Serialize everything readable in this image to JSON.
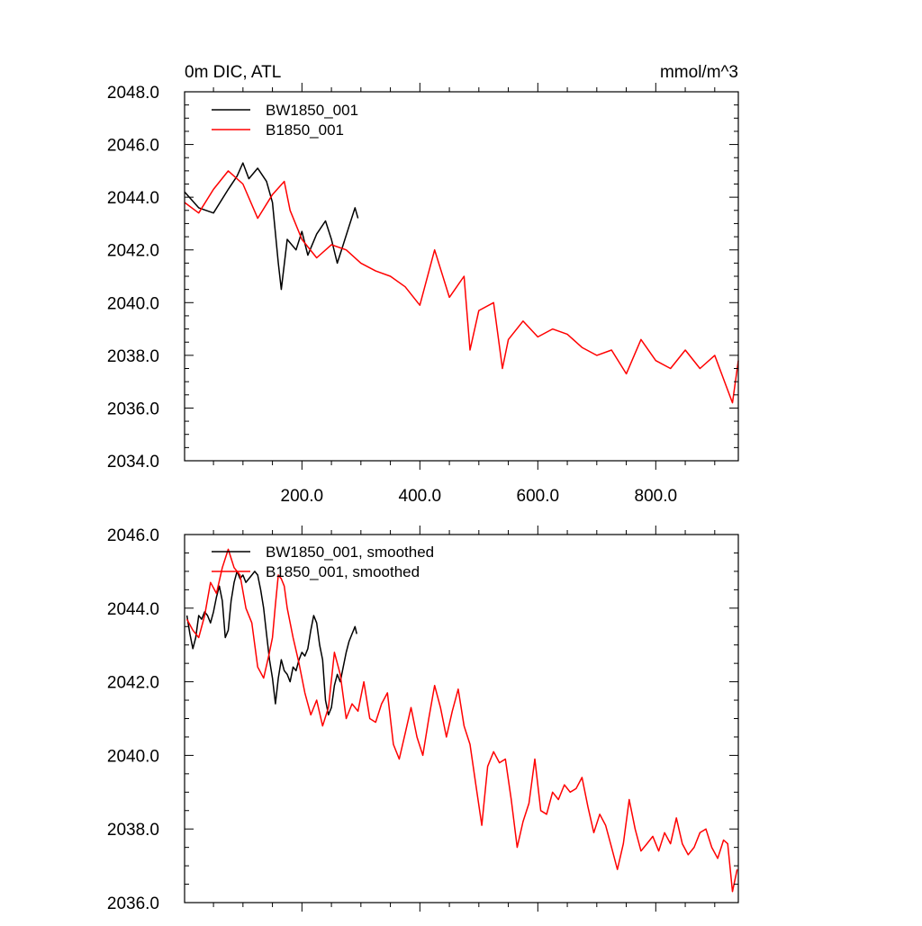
{
  "chart_data": [
    {
      "type": "line",
      "title": "0m DIC, ATL",
      "units": "mmol/m^3",
      "xlim": [
        1,
        940
      ],
      "ylim": [
        2034.0,
        2048.0
      ],
      "xticks": [
        200.0,
        400.0,
        600.0,
        800.0
      ],
      "xtick_labels": [
        "200.0",
        "400.0",
        "600.0",
        "800.0"
      ],
      "yticks": [
        2034.0,
        2036.0,
        2038.0,
        2040.0,
        2042.0,
        2044.0,
        2046.0,
        2048.0
      ],
      "ytick_labels": [
        "2034.0",
        "2036.0",
        "2038.0",
        "2040.0",
        "2042.0",
        "2044.0",
        "2046.0",
        "2048.0"
      ],
      "legend_position": "top-left",
      "series": [
        {
          "name": "BW1850_001",
          "color": "#000000",
          "x": [
            1,
            25,
            50,
            75,
            90,
            100,
            110,
            125,
            140,
            150,
            160,
            165,
            175,
            190,
            200,
            210,
            225,
            240,
            250,
            260,
            270,
            280,
            290,
            295
          ],
          "y": [
            2044.2,
            2043.6,
            2043.4,
            2044.3,
            2044.8,
            2045.3,
            2044.7,
            2045.1,
            2044.6,
            2043.8,
            2041.5,
            2040.5,
            2042.4,
            2042.0,
            2042.7,
            2041.8,
            2042.6,
            2043.1,
            2042.4,
            2041.5,
            2042.2,
            2042.9,
            2043.6,
            2043.2
          ]
        },
        {
          "name": "B1850_001",
          "color": "#ff0000",
          "x": [
            1,
            25,
            50,
            75,
            100,
            125,
            150,
            170,
            180,
            200,
            225,
            250,
            275,
            300,
            325,
            350,
            375,
            400,
            425,
            450,
            475,
            485,
            500,
            525,
            540,
            550,
            575,
            600,
            625,
            650,
            675,
            700,
            725,
            750,
            775,
            800,
            825,
            850,
            875,
            900,
            920,
            930,
            940
          ],
          "y": [
            2043.8,
            2043.4,
            2044.3,
            2045.0,
            2044.5,
            2043.2,
            2044.1,
            2044.6,
            2043.5,
            2042.4,
            2041.7,
            2042.2,
            2042.0,
            2041.5,
            2041.2,
            2041.0,
            2040.6,
            2039.9,
            2042.0,
            2040.2,
            2041.0,
            2038.2,
            2039.7,
            2040.0,
            2037.5,
            2038.6,
            2039.3,
            2038.7,
            2039.0,
            2038.8,
            2038.3,
            2038.0,
            2038.2,
            2037.3,
            2038.6,
            2037.8,
            2037.5,
            2038.2,
            2037.5,
            2038.0,
            2036.8,
            2036.2,
            2037.8
          ]
        }
      ]
    },
    {
      "type": "line",
      "xlim": [
        1,
        940
      ],
      "ylim": [
        2036.0,
        2046.0
      ],
      "yticks": [
        2036.0,
        2038.0,
        2040.0,
        2042.0,
        2044.0,
        2046.0
      ],
      "ytick_labels": [
        "2036.0",
        "2038.0",
        "2040.0",
        "2042.0",
        "2044.0",
        "2046.0"
      ],
      "legend_position": "top-left",
      "series": [
        {
          "name": "BW1850_001, smoothed",
          "color": "#000000",
          "x": [
            5,
            10,
            15,
            20,
            25,
            30,
            35,
            40,
            45,
            50,
            55,
            60,
            65,
            70,
            75,
            80,
            85,
            90,
            95,
            100,
            105,
            110,
            115,
            120,
            125,
            130,
            135,
            140,
            145,
            150,
            155,
            160,
            165,
            170,
            175,
            180,
            185,
            190,
            195,
            200,
            205,
            210,
            215,
            220,
            225,
            230,
            235,
            240,
            245,
            250,
            255,
            260,
            265,
            270,
            275,
            280,
            285,
            290,
            293
          ],
          "y": [
            2043.8,
            2043.3,
            2042.9,
            2043.2,
            2043.8,
            2043.7,
            2043.9,
            2043.8,
            2043.6,
            2043.9,
            2044.3,
            2044.6,
            2044.2,
            2043.2,
            2043.4,
            2044.2,
            2044.7,
            2045.0,
            2044.8,
            2044.9,
            2044.7,
            2044.8,
            2044.9,
            2045.0,
            2044.9,
            2044.5,
            2044.0,
            2043.3,
            2042.6,
            2042.1,
            2041.4,
            2042.1,
            2042.6,
            2042.3,
            2042.2,
            2042.0,
            2042.4,
            2042.3,
            2042.6,
            2042.8,
            2042.7,
            2042.9,
            2043.4,
            2043.8,
            2043.6,
            2043.0,
            2042.6,
            2041.5,
            2041.1,
            2041.3,
            2041.9,
            2042.2,
            2042.0,
            2042.4,
            2042.8,
            2043.1,
            2043.3,
            2043.5,
            2043.3
          ]
        },
        {
          "name": "B1850_001, smoothed",
          "color": "#ff0000",
          "x": [
            5,
            15,
            25,
            35,
            45,
            55,
            65,
            75,
            85,
            95,
            105,
            115,
            125,
            135,
            145,
            150,
            155,
            160,
            165,
            170,
            175,
            185,
            195,
            205,
            215,
            225,
            235,
            245,
            255,
            265,
            275,
            285,
            295,
            305,
            315,
            325,
            335,
            345,
            355,
            365,
            375,
            385,
            395,
            405,
            415,
            425,
            435,
            445,
            455,
            465,
            475,
            485,
            495,
            505,
            515,
            525,
            535,
            545,
            555,
            565,
            575,
            585,
            595,
            605,
            615,
            625,
            635,
            645,
            655,
            665,
            675,
            685,
            695,
            705,
            715,
            725,
            735,
            745,
            755,
            765,
            775,
            785,
            795,
            805,
            815,
            825,
            835,
            845,
            855,
            865,
            875,
            885,
            895,
            905,
            915,
            922,
            930,
            938
          ],
          "y": [
            2043.7,
            2043.4,
            2043.2,
            2043.8,
            2044.7,
            2044.4,
            2045.1,
            2045.6,
            2045.1,
            2044.9,
            2044.0,
            2043.6,
            2042.4,
            2042.1,
            2042.8,
            2043.2,
            2044.1,
            2044.9,
            2044.8,
            2044.6,
            2044.0,
            2043.2,
            2042.5,
            2041.7,
            2041.1,
            2041.5,
            2040.8,
            2041.3,
            2042.8,
            2042.2,
            2041.0,
            2041.4,
            2041.2,
            2042.0,
            2041.0,
            2040.9,
            2041.4,
            2041.7,
            2040.3,
            2039.9,
            2040.6,
            2041.3,
            2040.5,
            2040.0,
            2041.0,
            2041.9,
            2041.3,
            2040.5,
            2041.2,
            2041.8,
            2040.8,
            2040.3,
            2039.2,
            2038.1,
            2039.7,
            2040.1,
            2039.8,
            2039.9,
            2038.8,
            2037.5,
            2038.2,
            2038.7,
            2039.9,
            2038.5,
            2038.4,
            2039.0,
            2038.8,
            2039.2,
            2039.0,
            2039.1,
            2039.4,
            2038.6,
            2037.9,
            2038.4,
            2038.1,
            2037.5,
            2036.9,
            2037.6,
            2038.8,
            2038.0,
            2037.4,
            2037.6,
            2037.8,
            2037.4,
            2037.9,
            2037.6,
            2038.3,
            2037.6,
            2037.3,
            2037.5,
            2037.9,
            2038.0,
            2037.5,
            2037.2,
            2037.7,
            2037.6,
            2036.3,
            2036.9
          ]
        }
      ]
    }
  ]
}
